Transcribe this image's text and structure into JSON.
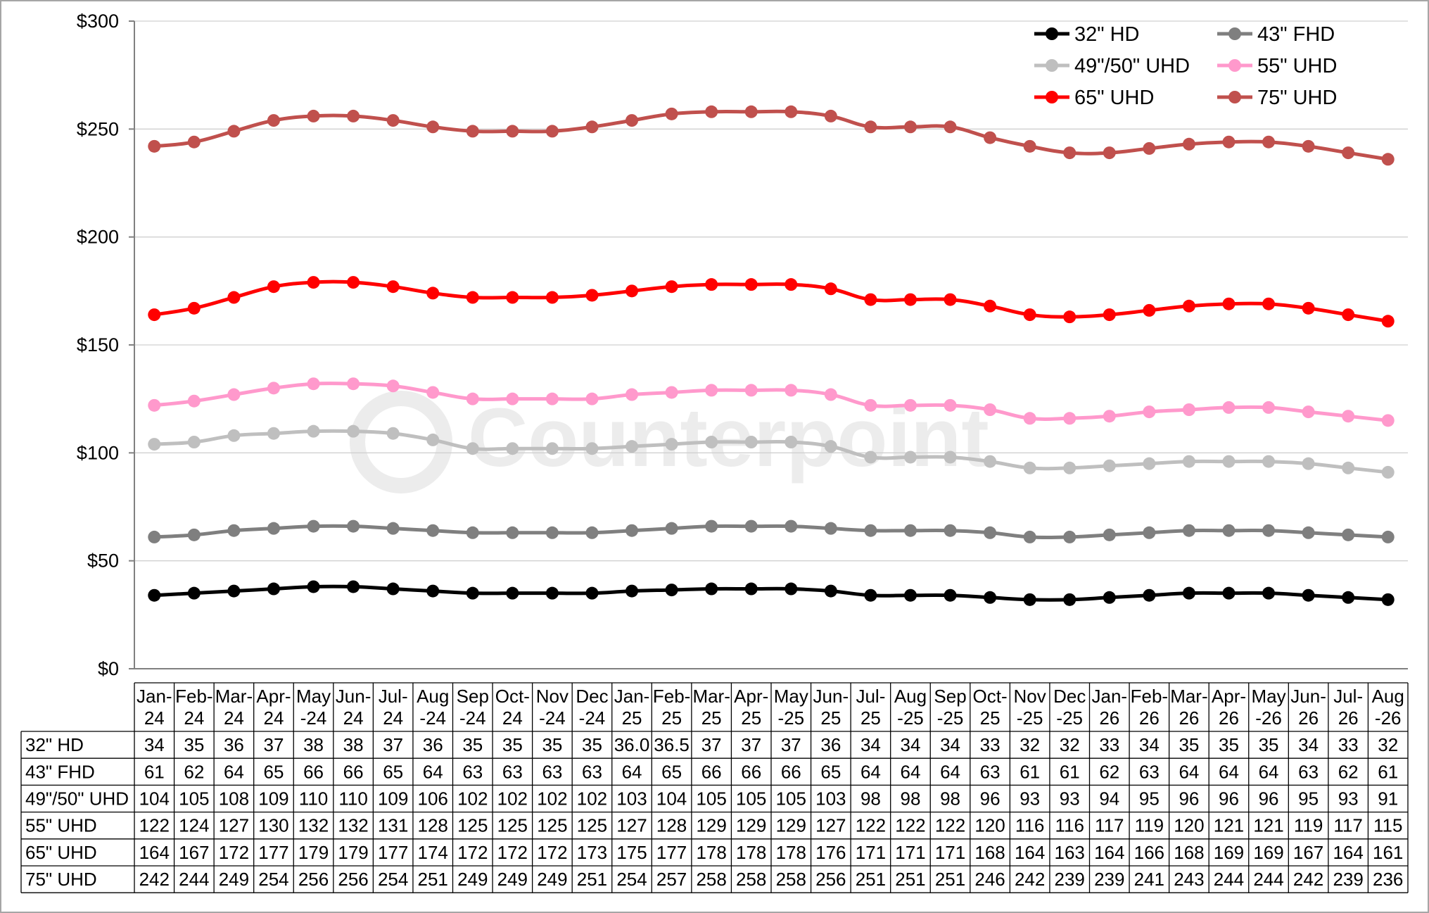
{
  "watermark": "Counterpoint",
  "chart_data": {
    "type": "line",
    "title": "",
    "xlabel": "",
    "ylabel": "",
    "ylim": [
      0,
      300
    ],
    "ytick_values": [
      0,
      50,
      100,
      150,
      200,
      250,
      300
    ],
    "ytick_labels": [
      "$0",
      "$50",
      "$100",
      "$150",
      "$200",
      "$250",
      "$300"
    ],
    "grid": true,
    "legend_position": "top-right",
    "categories": [
      [
        "Jan-",
        "24"
      ],
      [
        "Feb-",
        "24"
      ],
      [
        "Mar-",
        "24"
      ],
      [
        "Apr-",
        "24"
      ],
      [
        "May",
        "-24"
      ],
      [
        "Jun-",
        "24"
      ],
      [
        "Jul-",
        "24"
      ],
      [
        "Aug",
        "-24"
      ],
      [
        "Sep",
        "-24"
      ],
      [
        "Oct-",
        "24"
      ],
      [
        "Nov",
        "-24"
      ],
      [
        "Dec",
        "-24"
      ],
      [
        "Jan-",
        "25"
      ],
      [
        "Feb-",
        "25"
      ],
      [
        "Mar-",
        "25"
      ],
      [
        "Apr-",
        "25"
      ],
      [
        "May",
        "-25"
      ],
      [
        "Jun-",
        "25"
      ],
      [
        "Jul-",
        "25"
      ],
      [
        "Aug",
        "-25"
      ],
      [
        "Sep",
        "-25"
      ],
      [
        "Oct-",
        "25"
      ],
      [
        "Nov",
        "-25"
      ],
      [
        "Dec",
        "-25"
      ],
      [
        "Jan-",
        "26"
      ],
      [
        "Feb-",
        "26"
      ],
      [
        "Mar-",
        "26"
      ],
      [
        "Apr-",
        "26"
      ],
      [
        "May",
        "-26"
      ],
      [
        "Jun-",
        "26"
      ],
      [
        "Jul-",
        "26"
      ],
      [
        "Aug",
        "-26"
      ]
    ],
    "series": [
      {
        "name": "32\" HD",
        "color": "#000000",
        "values": [
          34,
          35,
          36,
          37,
          38,
          38,
          37,
          36,
          35,
          35,
          35,
          35,
          36.0,
          36.5,
          37,
          37,
          37,
          36,
          34,
          34,
          34,
          33,
          32,
          32,
          33,
          34,
          35,
          35,
          35,
          34,
          33,
          32
        ],
        "labels": [
          "34",
          "35",
          "36",
          "37",
          "38",
          "38",
          "37",
          "36",
          "35",
          "35",
          "35",
          "35",
          "36.0",
          "36.5",
          "37",
          "37",
          "37",
          "36",
          "34",
          "34",
          "34",
          "33",
          "32",
          "32",
          "33",
          "34",
          "35",
          "35",
          "35",
          "34",
          "33",
          "32"
        ]
      },
      {
        "name": "43\" FHD",
        "color": "#7f7f7f",
        "values": [
          61,
          62,
          64,
          65,
          66,
          66,
          65,
          64,
          63,
          63,
          63,
          63,
          64,
          65,
          66,
          66,
          66,
          65,
          64,
          64,
          64,
          63,
          61,
          61,
          62,
          63,
          64,
          64,
          64,
          63,
          62,
          61
        ],
        "labels": [
          "61",
          "62",
          "64",
          "65",
          "66",
          "66",
          "65",
          "64",
          "63",
          "63",
          "63",
          "63",
          "64",
          "65",
          "66",
          "66",
          "66",
          "65",
          "64",
          "64",
          "64",
          "63",
          "61",
          "61",
          "62",
          "63",
          "64",
          "64",
          "64",
          "63",
          "62",
          "61"
        ]
      },
      {
        "name": "49\"/50\" UHD",
        "color": "#bfbfbf",
        "values": [
          104,
          105,
          108,
          109,
          110,
          110,
          109,
          106,
          102,
          102,
          102,
          102,
          103,
          104,
          105,
          105,
          105,
          103,
          98,
          98,
          98,
          96,
          93,
          93,
          94,
          95,
          96,
          96,
          96,
          95,
          93,
          91
        ],
        "labels": [
          "104",
          "105",
          "108",
          "109",
          "110",
          "110",
          "109",
          "106",
          "102",
          "102",
          "102",
          "102",
          "103",
          "104",
          "105",
          "105",
          "105",
          "103",
          "98",
          "98",
          "98",
          "96",
          "93",
          "93",
          "94",
          "95",
          "96",
          "96",
          "96",
          "95",
          "93",
          "91"
        ]
      },
      {
        "name": "55\" UHD",
        "color": "#ff99cc",
        "values": [
          122,
          124,
          127,
          130,
          132,
          132,
          131,
          128,
          125,
          125,
          125,
          125,
          127,
          128,
          129,
          129,
          129,
          127,
          122,
          122,
          122,
          120,
          116,
          116,
          117,
          119,
          120,
          121,
          121,
          119,
          117,
          115
        ],
        "labels": [
          "122",
          "124",
          "127",
          "130",
          "132",
          "132",
          "131",
          "128",
          "125",
          "125",
          "125",
          "125",
          "127",
          "128",
          "129",
          "129",
          "129",
          "127",
          "122",
          "122",
          "122",
          "120",
          "116",
          "116",
          "117",
          "119",
          "120",
          "121",
          "121",
          "119",
          "117",
          "115"
        ]
      },
      {
        "name": "65\" UHD",
        "color": "#ff0000",
        "values": [
          164,
          167,
          172,
          177,
          179,
          179,
          177,
          174,
          172,
          172,
          172,
          173,
          175,
          177,
          178,
          178,
          178,
          176,
          171,
          171,
          171,
          168,
          164,
          163,
          164,
          166,
          168,
          169,
          169,
          167,
          164,
          161
        ],
        "labels": [
          "164",
          "167",
          "172",
          "177",
          "179",
          "179",
          "177",
          "174",
          "172",
          "172",
          "172",
          "173",
          "175",
          "177",
          "178",
          "178",
          "178",
          "176",
          "171",
          "171",
          "171",
          "168",
          "164",
          "163",
          "164",
          "166",
          "168",
          "169",
          "169",
          "167",
          "164",
          "161"
        ]
      },
      {
        "name": "75\" UHD",
        "color": "#c0504d",
        "values": [
          242,
          244,
          249,
          254,
          256,
          256,
          254,
          251,
          249,
          249,
          249,
          251,
          254,
          257,
          258,
          258,
          258,
          256,
          251,
          251,
          251,
          246,
          242,
          239,
          239,
          241,
          243,
          244,
          244,
          242,
          239,
          236
        ],
        "labels": [
          "242",
          "244",
          "249",
          "254",
          "256",
          "256",
          "254",
          "251",
          "249",
          "249",
          "249",
          "251",
          "254",
          "257",
          "258",
          "258",
          "258",
          "256",
          "251",
          "251",
          "251",
          "246",
          "242",
          "239",
          "239",
          "241",
          "243",
          "244",
          "244",
          "242",
          "239",
          "236"
        ]
      }
    ]
  }
}
